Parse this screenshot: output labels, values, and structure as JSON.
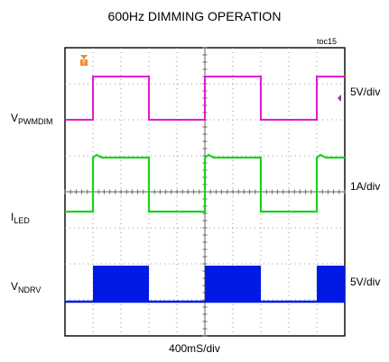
{
  "chart_data": {
    "type": "line",
    "title": "600Hz DIMMING OPERATION",
    "figure_id": "toc15",
    "xlabel": "400mS/div",
    "x_divisions": 10,
    "y_divisions": 8,
    "grid": true,
    "period_div": 4.0,
    "first_rising_edge_div": 1.0,
    "duty": 0.5,
    "series": [
      {
        "name": "PWMDIM",
        "name_sub": "PWMDIM",
        "name_prefix": "V",
        "scale": "5V/div",
        "color": "#e11ad1",
        "low_level_div": 6.0,
        "high_level_div": 7.2
      },
      {
        "name": "LED",
        "name_sub": "LED",
        "name_prefix": "I",
        "scale": "1A/div",
        "color": "#19d31f",
        "low_level_div": 3.45,
        "high_level_div": 4.95
      },
      {
        "name": "NDRV",
        "name_sub": "NDRV",
        "name_prefix": "V",
        "scale": "5V/div",
        "color": "#0019e6",
        "low_level_div": 0.95,
        "high_level_div": 1.95
      }
    ],
    "trigger_marker": "T"
  }
}
